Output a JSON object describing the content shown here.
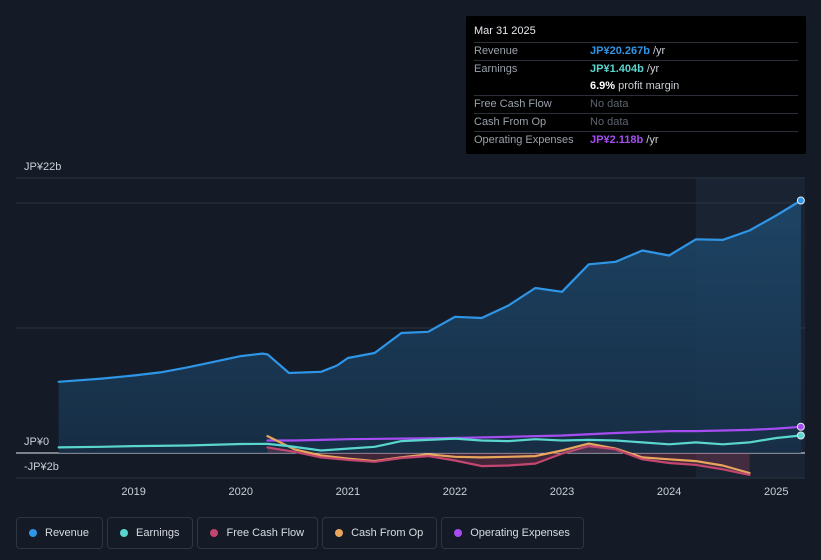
{
  "tooltip": {
    "date": "Mar 31 2025",
    "rows": [
      {
        "label": "Revenue",
        "value": "JP¥20.267b",
        "unit": " /yr",
        "color": "#2f95e6"
      },
      {
        "label": "Earnings",
        "value": "JP¥1.404b",
        "unit": " /yr",
        "color": "#5ad6cf"
      },
      {
        "label": "",
        "value": "6.9%",
        "unit": " profit margin",
        "color": "#ffffff"
      },
      {
        "label": "Free Cash Flow",
        "value": "No data"
      },
      {
        "label": "Cash From Op",
        "value": "No data"
      },
      {
        "label": "Operating Expenses",
        "value": "JP¥2.118b",
        "unit": " /yr",
        "color": "#a64df2"
      }
    ]
  },
  "legend": [
    {
      "label": "Revenue",
      "color": "#2f95e6"
    },
    {
      "label": "Earnings",
      "color": "#5ad6cf"
    },
    {
      "label": "Free Cash Flow",
      "color": "#c2466f"
    },
    {
      "label": "Cash From Op",
      "color": "#e8a65c"
    },
    {
      "label": "Operating Expenses",
      "color": "#a64df2"
    }
  ],
  "chart_data": {
    "type": "line",
    "title": "",
    "xlabel": "",
    "ylabel": "",
    "y_unit": "JP¥ billions",
    "ylim": [
      -2,
      22
    ],
    "y_tick_labels": [
      {
        "value": 22,
        "label": "JP¥22b"
      },
      {
        "value": 0,
        "label": "JP¥0"
      },
      {
        "value": -2,
        "label": "-JP¥2b"
      }
    ],
    "x_ticks": [
      2019,
      2020,
      2021,
      2022,
      2023,
      2024,
      2025
    ],
    "xlim": [
      2018.2,
      2025.25
    ],
    "highlight_from": 2024.25,
    "series": [
      {
        "name": "Revenue",
        "color": "#2f95e6",
        "filled": true,
        "points": [
          [
            2018.3,
            5.7
          ],
          [
            2018.7,
            5.95
          ],
          [
            2019.0,
            6.2
          ],
          [
            2019.25,
            6.45
          ],
          [
            2019.5,
            6.85
          ],
          [
            2019.75,
            7.3
          ],
          [
            2020.0,
            7.75
          ],
          [
            2020.2,
            7.95
          ],
          [
            2020.25,
            7.9
          ],
          [
            2020.45,
            6.4
          ],
          [
            2020.75,
            6.5
          ],
          [
            2020.9,
            7.0
          ],
          [
            2021.0,
            7.6
          ],
          [
            2021.25,
            8.0
          ],
          [
            2021.5,
            9.6
          ],
          [
            2021.75,
            9.7
          ],
          [
            2022.0,
            10.9
          ],
          [
            2022.25,
            10.8
          ],
          [
            2022.5,
            11.8
          ],
          [
            2022.75,
            13.2
          ],
          [
            2023.0,
            12.9
          ],
          [
            2023.25,
            15.1
          ],
          [
            2023.5,
            15.3
          ],
          [
            2023.75,
            16.2
          ],
          [
            2024.0,
            15.8
          ],
          [
            2024.25,
            17.1
          ],
          [
            2024.5,
            17.05
          ],
          [
            2024.75,
            17.8
          ],
          [
            2025.0,
            19.0
          ],
          [
            2025.23,
            20.2
          ]
        ]
      },
      {
        "name": "Earnings",
        "color": "#5ad6cf",
        "filled": false,
        "points": [
          [
            2018.3,
            0.45
          ],
          [
            2018.7,
            0.5
          ],
          [
            2019.0,
            0.55
          ],
          [
            2019.5,
            0.6
          ],
          [
            2020.0,
            0.72
          ],
          [
            2020.25,
            0.73
          ],
          [
            2020.45,
            0.55
          ],
          [
            2020.75,
            0.2
          ],
          [
            2021.0,
            0.35
          ],
          [
            2021.25,
            0.5
          ],
          [
            2021.5,
            0.95
          ],
          [
            2021.75,
            1.05
          ],
          [
            2022.0,
            1.15
          ],
          [
            2022.25,
            1.0
          ],
          [
            2022.5,
            0.95
          ],
          [
            2022.75,
            1.1
          ],
          [
            2023.0,
            1.0
          ],
          [
            2023.25,
            1.05
          ],
          [
            2023.5,
            1.0
          ],
          [
            2023.75,
            0.85
          ],
          [
            2024.0,
            0.7
          ],
          [
            2024.25,
            0.85
          ],
          [
            2024.5,
            0.7
          ],
          [
            2024.75,
            0.85
          ],
          [
            2025.0,
            1.2
          ],
          [
            2025.23,
            1.4
          ]
        ]
      },
      {
        "name": "Free Cash Flow",
        "color": "#c2466f",
        "filled": true,
        "points": [
          [
            2020.25,
            0.45
          ],
          [
            2020.5,
            0.1
          ],
          [
            2020.75,
            -0.35
          ],
          [
            2021.0,
            -0.55
          ],
          [
            2021.25,
            -0.7
          ],
          [
            2021.5,
            -0.4
          ],
          [
            2021.75,
            -0.25
          ],
          [
            2022.0,
            -0.6
          ],
          [
            2022.25,
            -1.05
          ],
          [
            2022.5,
            -1.0
          ],
          [
            2022.75,
            -0.85
          ],
          [
            2023.0,
            -0.05
          ],
          [
            2023.25,
            0.55
          ],
          [
            2023.5,
            0.3
          ],
          [
            2023.75,
            -0.5
          ],
          [
            2024.0,
            -0.8
          ],
          [
            2024.25,
            -0.95
          ],
          [
            2024.5,
            -1.3
          ],
          [
            2024.75,
            -1.75
          ]
        ]
      },
      {
        "name": "Cash From Op",
        "color": "#e8a65c",
        "filled": false,
        "points": [
          [
            2020.25,
            1.35
          ],
          [
            2020.5,
            0.3
          ],
          [
            2020.75,
            -0.2
          ],
          [
            2021.0,
            -0.45
          ],
          [
            2021.25,
            -0.65
          ],
          [
            2021.5,
            -0.35
          ],
          [
            2021.75,
            -0.1
          ],
          [
            2022.0,
            -0.3
          ],
          [
            2022.25,
            -0.35
          ],
          [
            2022.5,
            -0.3
          ],
          [
            2022.75,
            -0.25
          ],
          [
            2023.0,
            0.2
          ],
          [
            2023.25,
            0.75
          ],
          [
            2023.5,
            0.35
          ],
          [
            2023.75,
            -0.35
          ],
          [
            2024.0,
            -0.5
          ],
          [
            2024.25,
            -0.65
          ],
          [
            2024.5,
            -1.0
          ],
          [
            2024.75,
            -1.6
          ]
        ]
      },
      {
        "name": "Operating Expenses",
        "color": "#a64df2",
        "filled": false,
        "points": [
          [
            2020.25,
            1.0
          ],
          [
            2020.5,
            1.0
          ],
          [
            2020.75,
            1.05
          ],
          [
            2021.0,
            1.1
          ],
          [
            2021.5,
            1.15
          ],
          [
            2022.0,
            1.2
          ],
          [
            2022.5,
            1.3
          ],
          [
            2023.0,
            1.4
          ],
          [
            2023.5,
            1.6
          ],
          [
            2024.0,
            1.75
          ],
          [
            2024.25,
            1.75
          ],
          [
            2024.5,
            1.8
          ],
          [
            2024.75,
            1.85
          ],
          [
            2025.0,
            1.95
          ],
          [
            2025.23,
            2.1
          ]
        ]
      }
    ]
  }
}
